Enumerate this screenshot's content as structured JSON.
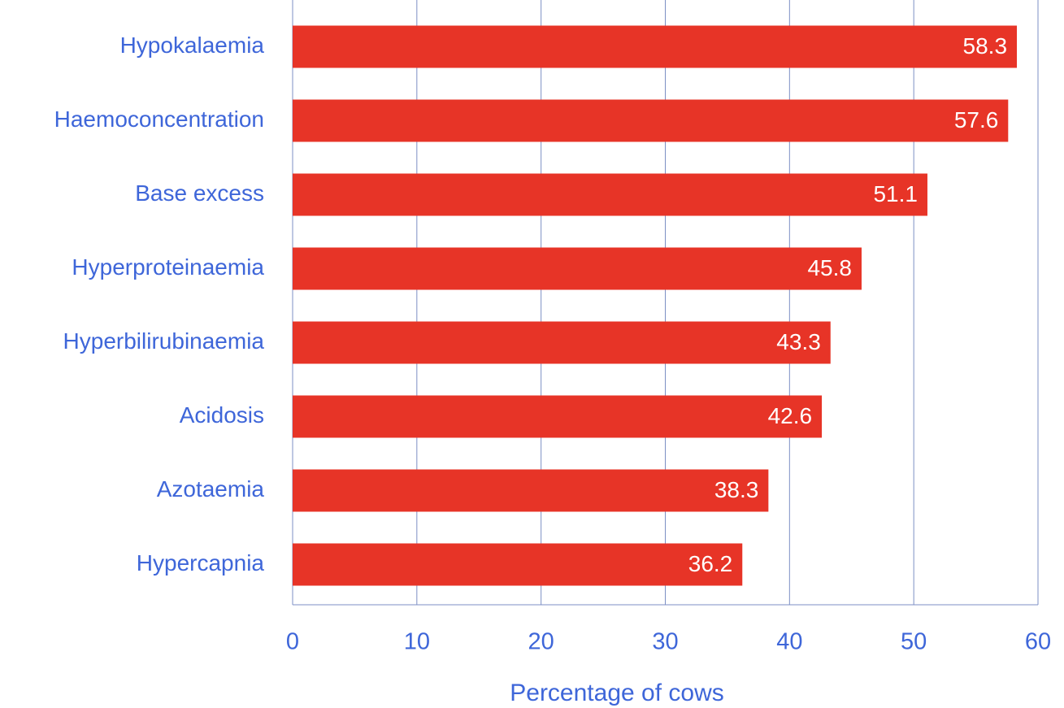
{
  "chart_data": {
    "type": "bar",
    "orientation": "horizontal",
    "xlabel": "Percentage of cows",
    "categories": [
      "Hypokalaemia",
      "Haemoconcentration",
      "Base excess",
      "Hyperproteinaemia",
      "Hyperbilirubinaemia",
      "Acidosis",
      "Azotaemia",
      "Hypercapnia"
    ],
    "values": [
      58.3,
      57.6,
      51.1,
      45.8,
      43.3,
      42.6,
      38.3,
      36.2
    ],
    "color": "#e73427",
    "xlim": [
      0,
      60
    ],
    "xticks": [
      0,
      10,
      20,
      30,
      40,
      50,
      60
    ],
    "grid": true
  }
}
